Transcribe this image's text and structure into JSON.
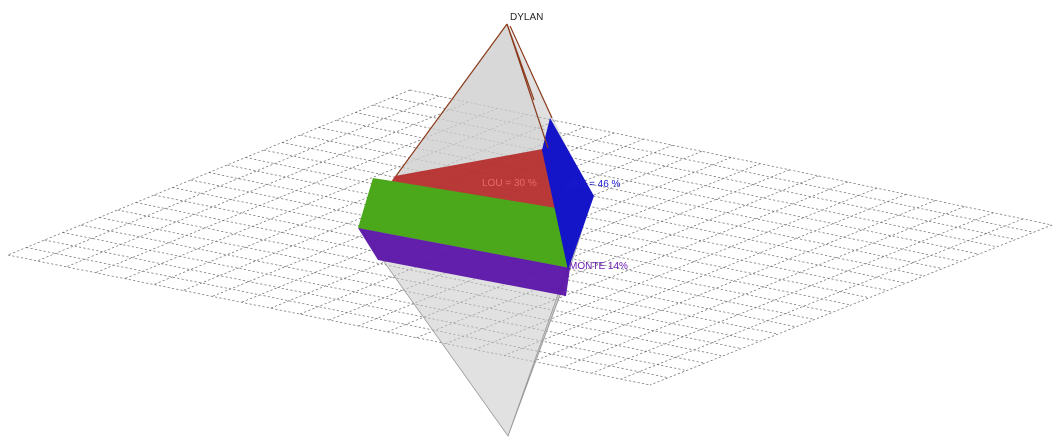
{
  "diagram": {
    "apex_label": "DYLAN",
    "segments": [
      {
        "id": "lou",
        "label": "LOU = 30 %",
        "percent": 30,
        "color": "#b52a2a",
        "text_color": "#e86a6a"
      },
      {
        "id": "lien",
        "label": "LIEN = 46 %",
        "percent": 46,
        "color": "#1414c8",
        "text_color": "#1a1ad0"
      },
      {
        "id": "monte",
        "label": "MONTE 14%",
        "percent": 14,
        "color": "#5a14a8",
        "text_color": "#6a1ab0"
      },
      {
        "id": "green",
        "percent": 10,
        "color": "#4aa81a"
      }
    ],
    "colors": {
      "pyramid_fill": "#c8c8c8",
      "pyramid_edge": "#8a3a1a",
      "grid": "#6a6a6a"
    }
  }
}
